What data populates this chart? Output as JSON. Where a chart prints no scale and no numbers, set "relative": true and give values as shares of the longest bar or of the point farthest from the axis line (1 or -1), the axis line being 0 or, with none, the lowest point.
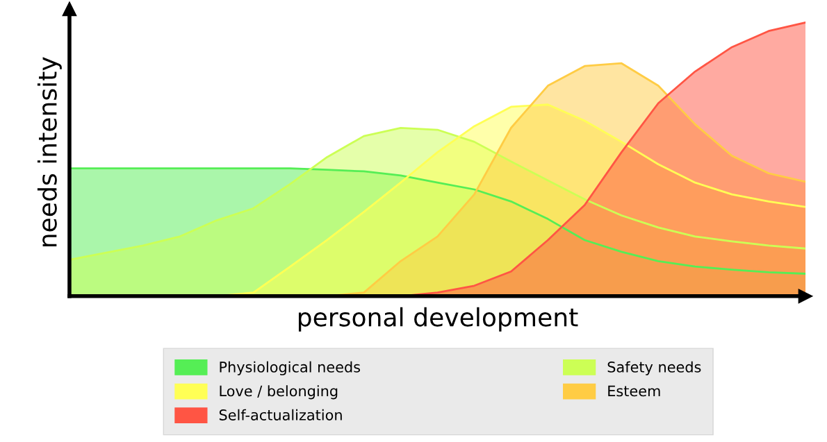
{
  "chart_data": {
    "type": "area",
    "relative": true,
    "xlabel": "personal development",
    "ylabel": "needs intensity",
    "legend": "bottom",
    "grid": false,
    "categories": [
      null,
      null,
      null,
      null,
      null,
      null,
      null,
      null,
      null,
      null,
      null,
      null,
      null,
      null,
      null,
      null,
      null,
      null,
      null,
      null,
      null
    ],
    "series": [
      {
        "name": "Physiological needs",
        "color": "#55ee55",
        "values": [
          0.467,
          0.467,
          0.467,
          0.467,
          0.467,
          0.467,
          0.467,
          0.462,
          0.456,
          0.441,
          0.415,
          0.39,
          0.346,
          0.282,
          0.205,
          0.162,
          0.128,
          0.108,
          0.097,
          0.087,
          0.082
        ]
      },
      {
        "name": "Safety needs",
        "color": "#ccff55",
        "values": [
          0.133,
          0.159,
          0.185,
          0.218,
          0.277,
          0.321,
          0.41,
          0.508,
          0.585,
          0.615,
          0.608,
          0.564,
          0.492,
          0.423,
          0.354,
          0.295,
          0.251,
          0.218,
          0.2,
          0.185,
          0.174
        ]
      },
      {
        "name": "Love / belonging",
        "color": "#ffff55",
        "values": [
          0,
          0,
          0,
          0,
          0,
          0.013,
          0.108,
          0.205,
          0.308,
          0.415,
          0.526,
          0.621,
          0.692,
          0.7,
          0.641,
          0.564,
          0.482,
          0.415,
          0.372,
          0.346,
          0.326
        ]
      },
      {
        "name": "Esteem",
        "color": "#ffcc44",
        "values": [
          0,
          0,
          0,
          0,
          0,
          0,
          0,
          0,
          0.013,
          0.128,
          0.218,
          0.372,
          0.615,
          0.769,
          0.841,
          0.851,
          0.769,
          0.628,
          0.513,
          0.449,
          0.418
        ]
      },
      {
        "name": "Self-actualization",
        "color": "#ff5544",
        "values": [
          0,
          0,
          0,
          0,
          0,
          0,
          0,
          0,
          0,
          0,
          0.013,
          0.038,
          0.09,
          0.205,
          0.333,
          0.526,
          0.705,
          0.821,
          0.91,
          0.969,
          1
        ]
      }
    ]
  }
}
